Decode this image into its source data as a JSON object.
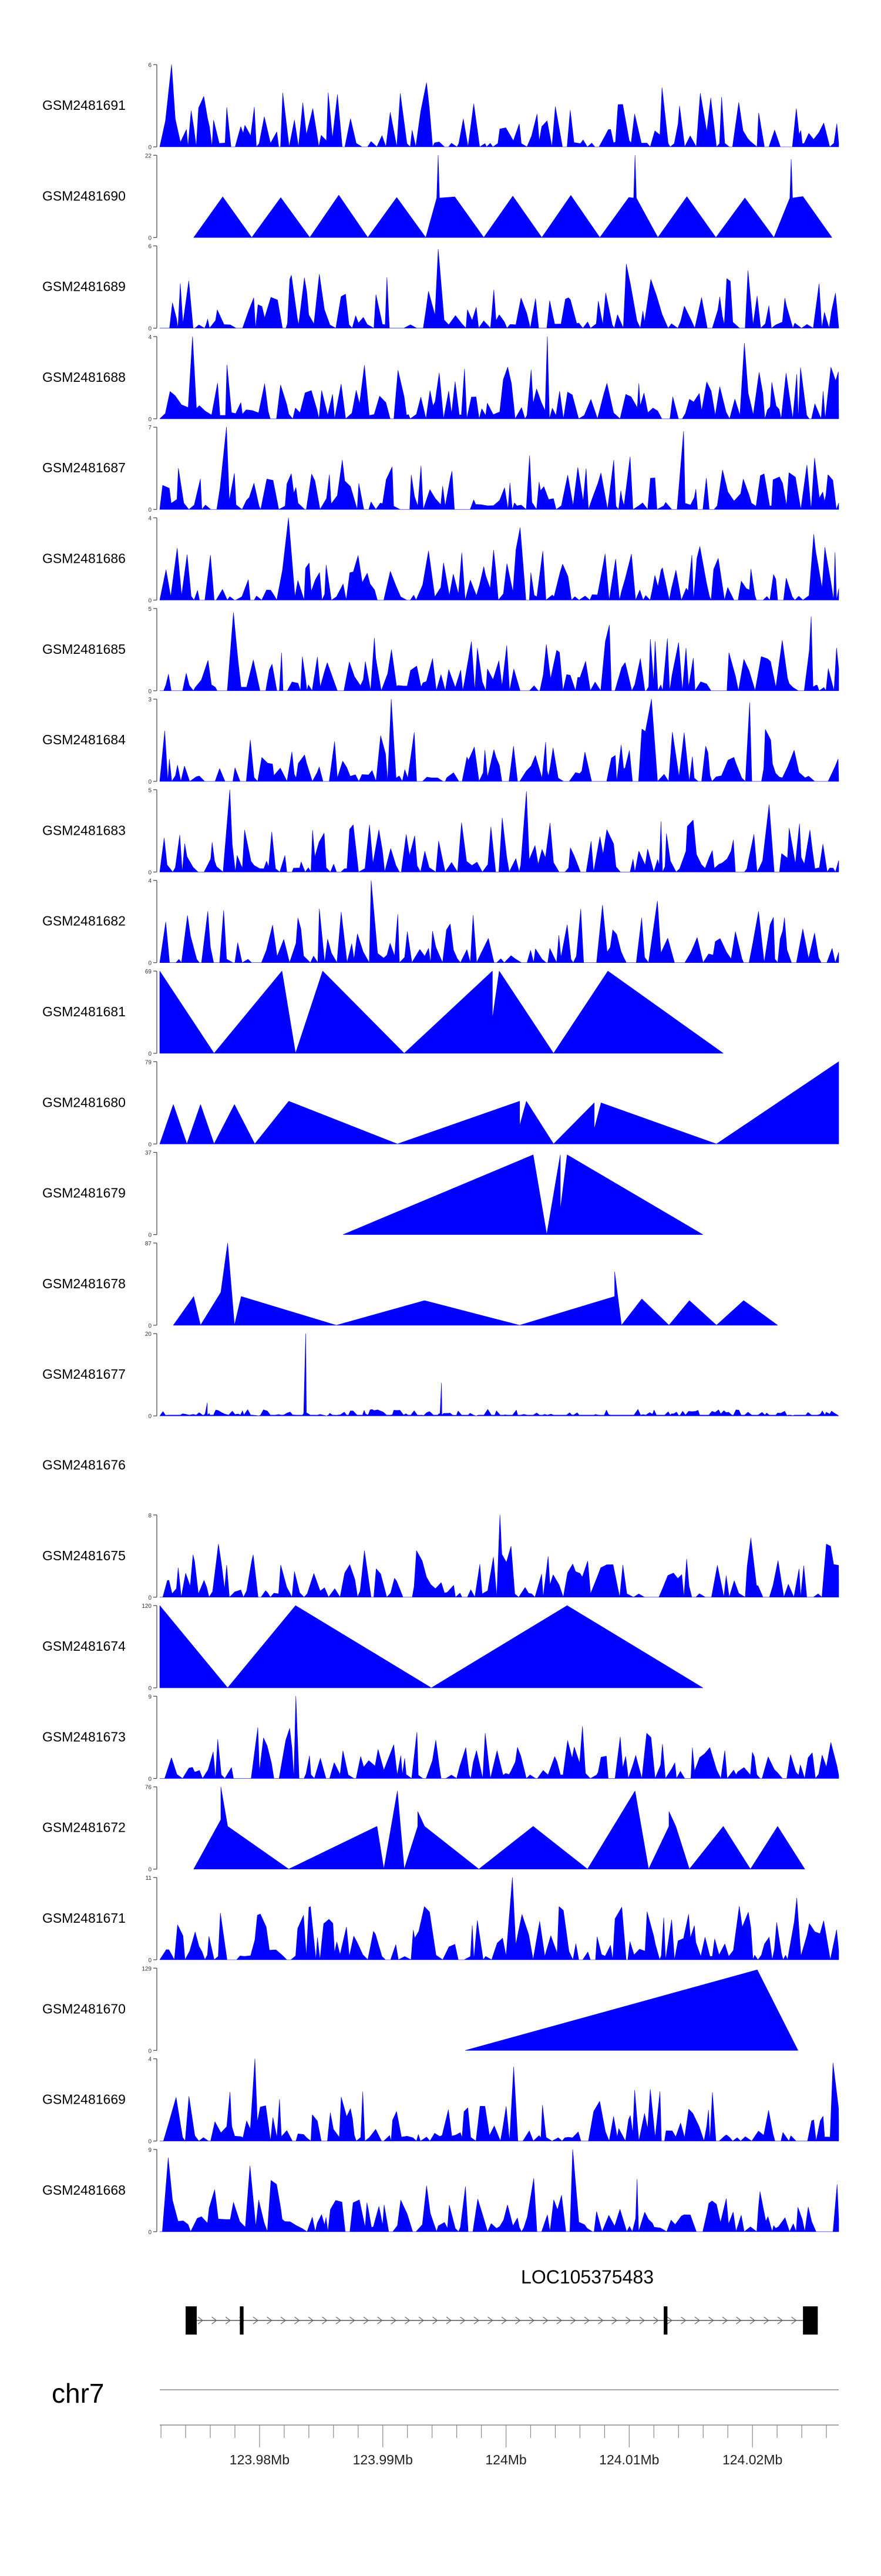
{
  "chart_data": {
    "type": "area",
    "title": "",
    "color": "#0000ff",
    "series": [
      {
        "name": "GSM2481691",
        "ymax": "6",
        "ymin": "0",
        "pattern": "spiky",
        "peaks": [
          [
            0.02,
            1.0
          ],
          [
            0.39,
            0.78
          ],
          [
            0.74,
            0.72
          ]
        ]
      },
      {
        "name": "GSM2481690",
        "ymax": "22",
        "ymin": "0",
        "pattern": "triangles",
        "start": 0.05,
        "end": 0.99,
        "n": 11,
        "peaks": [
          [
            0.41,
            1.0
          ],
          [
            0.7,
            1.0
          ],
          [
            0.93,
            0.95
          ]
        ]
      },
      {
        "name": "GSM2481689",
        "ymax": "6",
        "ymin": "0",
        "pattern": "spiky",
        "peaks": [
          [
            0.41,
            0.96
          ],
          [
            0.69,
            0.78
          ],
          [
            0.87,
            0.7
          ]
        ]
      },
      {
        "name": "GSM2481688",
        "ymax": "4",
        "ymin": "0",
        "pattern": "spiky",
        "peaks": [
          [
            0.05,
            1.0
          ],
          [
            0.57,
            1.0
          ],
          [
            0.86,
            0.92
          ]
        ]
      },
      {
        "name": "GSM2481687",
        "ymax": "7",
        "ymin": "0",
        "pattern": "spiky",
        "peaks": [
          [
            0.1,
            1.0
          ],
          [
            0.77,
            0.95
          ],
          [
            0.27,
            0.6
          ]
        ]
      },
      {
        "name": "GSM2481686",
        "ymax": "4",
        "ymin": "0",
        "pattern": "spiky",
        "peaks": [
          [
            0.19,
            1.0
          ],
          [
            0.53,
            0.88
          ],
          [
            0.96,
            0.8
          ]
        ]
      },
      {
        "name": "GSM2481685",
        "ymax": "5",
        "ymin": "0",
        "pattern": "spiky",
        "peaks": [
          [
            0.11,
            0.95
          ],
          [
            0.66,
            0.8
          ],
          [
            0.96,
            0.9
          ]
        ]
      },
      {
        "name": "GSM2481684",
        "ymax": "3",
        "ymin": "0",
        "pattern": "spiky",
        "peaks": [
          [
            0.34,
            1.0
          ],
          [
            0.72,
            1.0
          ],
          [
            0.87,
            0.96
          ]
        ]
      },
      {
        "name": "GSM2481683",
        "ymax": "5",
        "ymin": "0",
        "pattern": "spiky",
        "peaks": [
          [
            0.1,
            1.0
          ],
          [
            0.54,
            0.98
          ],
          [
            0.9,
            0.82
          ]
        ]
      },
      {
        "name": "GSM2481682",
        "ymax": "4",
        "ymin": "0",
        "pattern": "spiky",
        "peaks": [
          [
            0.31,
            1.0
          ],
          [
            0.73,
            0.75
          ],
          [
            0.65,
            0.7
          ]
        ]
      },
      {
        "name": "GSM2481681",
        "ymax": "69",
        "ymin": "0",
        "pattern": "sawtooth",
        "points": [
          [
            0.0,
            1.0
          ],
          [
            0.08,
            0.0
          ],
          [
            0.18,
            1.0
          ],
          [
            0.2,
            0.0
          ],
          [
            0.24,
            1.0
          ],
          [
            0.36,
            0.0
          ],
          [
            0.49,
            1.0
          ],
          [
            0.49,
            0.42
          ],
          [
            0.5,
            1.0
          ],
          [
            0.58,
            0.0
          ],
          [
            0.66,
            1.0
          ],
          [
            0.83,
            0.0
          ]
        ]
      },
      {
        "name": "GSM2481680",
        "ymax": "79",
        "ymin": "0",
        "pattern": "sawtooth",
        "points": [
          [
            0.0,
            0.0
          ],
          [
            0.02,
            0.48
          ],
          [
            0.04,
            0.0
          ],
          [
            0.06,
            0.48
          ],
          [
            0.08,
            0.0
          ],
          [
            0.11,
            0.48
          ],
          [
            0.14,
            0.0
          ],
          [
            0.19,
            0.52
          ],
          [
            0.35,
            0.0
          ],
          [
            0.53,
            0.52
          ],
          [
            0.53,
            0.22
          ],
          [
            0.54,
            0.52
          ],
          [
            0.58,
            0.0
          ],
          [
            0.64,
            0.5
          ],
          [
            0.64,
            0.18
          ],
          [
            0.65,
            0.5
          ],
          [
            0.82,
            0.0
          ],
          [
            1.0,
            1.0
          ],
          [
            1.0,
            0.0
          ]
        ]
      },
      {
        "name": "GSM2481679",
        "ymax": "37",
        "ymin": "0",
        "pattern": "sawtooth",
        "points": [
          [
            0.27,
            0.0
          ],
          [
            0.55,
            0.97
          ],
          [
            0.57,
            0.0
          ],
          [
            0.59,
            0.97
          ],
          [
            0.59,
            0.3
          ],
          [
            0.6,
            0.97
          ],
          [
            0.8,
            0.0
          ]
        ]
      },
      {
        "name": "GSM2481678",
        "ymax": "87",
        "ymin": "0",
        "pattern": "sawtooth",
        "points": [
          [
            0.02,
            0.0
          ],
          [
            0.05,
            0.35
          ],
          [
            0.06,
            0.0
          ],
          [
            0.09,
            0.4
          ],
          [
            0.1,
            1.0
          ],
          [
            0.11,
            0.0
          ],
          [
            0.12,
            0.35
          ],
          [
            0.26,
            0.0
          ],
          [
            0.39,
            0.3
          ],
          [
            0.53,
            0.0
          ],
          [
            0.67,
            0.35
          ],
          [
            0.67,
            0.65
          ],
          [
            0.68,
            0.0
          ],
          [
            0.71,
            0.32
          ],
          [
            0.75,
            0.0
          ],
          [
            0.78,
            0.3
          ],
          [
            0.82,
            0.0
          ],
          [
            0.86,
            0.3
          ],
          [
            0.91,
            0.0
          ]
        ]
      },
      {
        "name": "GSM2481677",
        "ymax": "20",
        "ymin": "0",
        "pattern": "noise",
        "peaks": [
          [
            0.215,
            1.0
          ],
          [
            0.415,
            0.4
          ],
          [
            0.07,
            0.16
          ]
        ]
      },
      {
        "name": "GSM2481676",
        "ymax": "",
        "ymin": "",
        "pattern": "empty"
      },
      {
        "name": "GSM2481675",
        "ymax": "8",
        "ymin": "0",
        "pattern": "spiky",
        "peaks": [
          [
            0.5,
            1.0
          ],
          [
            0.87,
            0.72
          ],
          [
            0.99,
            0.62
          ]
        ]
      },
      {
        "name": "GSM2481674",
        "ymax": "120",
        "ymin": "0",
        "pattern": "sawtooth",
        "points": [
          [
            0.0,
            1.0
          ],
          [
            0.1,
            0.0
          ],
          [
            0.2,
            1.0
          ],
          [
            0.4,
            0.0
          ],
          [
            0.6,
            1.0
          ],
          [
            0.8,
            0.0
          ]
        ]
      },
      {
        "name": "GSM2481673",
        "ymax": "9",
        "ymin": "0",
        "pattern": "spiky",
        "peaks": [
          [
            0.2,
            1.0
          ],
          [
            0.72,
            0.55
          ],
          [
            0.48,
            0.55
          ]
        ]
      },
      {
        "name": "GSM2481672",
        "ymax": "76",
        "ymin": "0",
        "pattern": "sawtooth",
        "points": [
          [
            0.05,
            0.0
          ],
          [
            0.09,
            0.6
          ],
          [
            0.09,
            1.0
          ],
          [
            0.1,
            0.52
          ],
          [
            0.19,
            0.0
          ],
          [
            0.32,
            0.52
          ],
          [
            0.33,
            0.0
          ],
          [
            0.35,
            0.95
          ],
          [
            0.36,
            0.0
          ],
          [
            0.38,
            0.52
          ],
          [
            0.38,
            0.7
          ],
          [
            0.39,
            0.52
          ],
          [
            0.47,
            0.0
          ],
          [
            0.55,
            0.52
          ],
          [
            0.63,
            0.0
          ],
          [
            0.7,
            0.95
          ],
          [
            0.72,
            0.0
          ],
          [
            0.75,
            0.52
          ],
          [
            0.75,
            0.7
          ],
          [
            0.76,
            0.52
          ],
          [
            0.78,
            0.0
          ],
          [
            0.83,
            0.52
          ],
          [
            0.87,
            0.0
          ],
          [
            0.91,
            0.52
          ],
          [
            0.95,
            0.0
          ]
        ]
      },
      {
        "name": "GSM2481671",
        "ymax": "11",
        "ymin": "0",
        "pattern": "spiky",
        "peaks": [
          [
            0.52,
            1.0
          ],
          [
            0.85,
            0.65
          ],
          [
            0.94,
            0.75
          ]
        ]
      },
      {
        "name": "GSM2481670",
        "ymax": "129",
        "ymin": "0",
        "pattern": "sawtooth",
        "points": [
          [
            0.45,
            0.0
          ],
          [
            0.88,
            0.98
          ],
          [
            0.94,
            0.0
          ]
        ]
      },
      {
        "name": "GSM2481669",
        "ymax": "4",
        "ymin": "0",
        "pattern": "spiky",
        "peaks": [
          [
            0.14,
            1.0
          ],
          [
            0.99,
            0.95
          ],
          [
            0.52,
            0.9
          ]
        ]
      },
      {
        "name": "GSM2481668",
        "ymax": "9",
        "ymin": "0",
        "pattern": "spiky",
        "peaks": [
          [
            0.61,
            1.0
          ],
          [
            0.01,
            0.9
          ],
          [
            0.13,
            0.8
          ]
        ]
      }
    ],
    "gene": {
      "name": "LOC105375483",
      "start": 123.974,
      "end": 124.0253,
      "exons": [
        [
          123.974,
          123.9749
        ],
        [
          123.9784,
          123.9787
        ],
        [
          124.0128,
          124.0131
        ],
        [
          124.0241,
          124.0253
        ]
      ]
    },
    "chromosome": "chr7",
    "xlim": [
      123.9719,
      124.027
    ],
    "xticks": [
      {
        "value": 123.98,
        "label": "123.98Mb"
      },
      {
        "value": 123.99,
        "label": "123.99Mb"
      },
      {
        "value": 124.0,
        "label": "124Mb"
      },
      {
        "value": 124.01,
        "label": "124.01Mb"
      },
      {
        "value": 124.02,
        "label": "124.02Mb"
      }
    ],
    "xlabel": "",
    "ylabel": ""
  }
}
